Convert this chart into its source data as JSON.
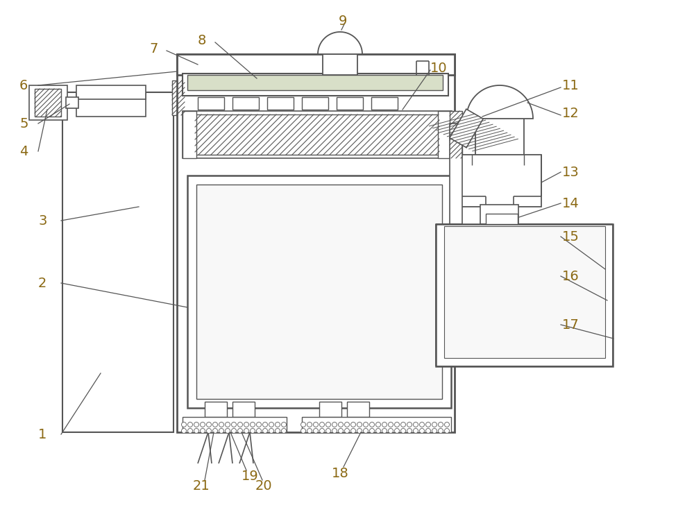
{
  "bg_color": "#ffffff",
  "line_color": "#555555",
  "label_color": "#8B6914",
  "fig_width": 10.0,
  "fig_height": 7.38,
  "dpi": 100
}
